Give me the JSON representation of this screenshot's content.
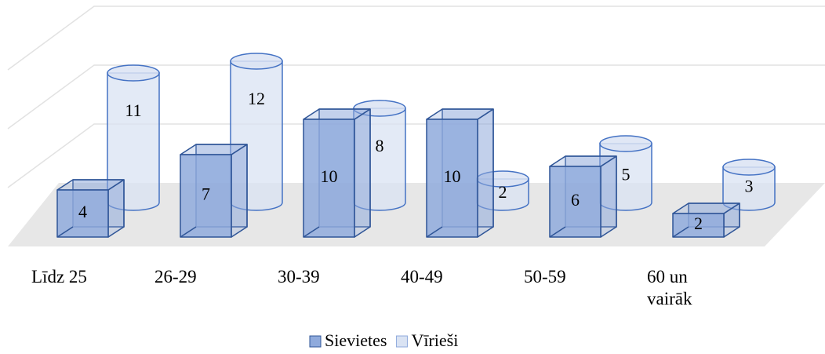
{
  "chart_data": {
    "type": "bar3d",
    "categories": [
      "Līdz 25",
      "26-29",
      "30-39",
      "40-49",
      "50-59",
      "60 un vairāk"
    ],
    "series": [
      {
        "name": "Sievietes",
        "color": "#8faadc",
        "shape": "box",
        "values": [
          4,
          7,
          10,
          10,
          6,
          2
        ]
      },
      {
        "name": "Vīrieši",
        "color": "#dae3f3",
        "shape": "cylinder",
        "values": [
          11,
          12,
          8,
          2,
          5,
          3
        ]
      }
    ],
    "ylim": [
      0,
      15
    ],
    "yticks": [
      0,
      5,
      10,
      15
    ],
    "grid": true,
    "legend": "bottom"
  }
}
